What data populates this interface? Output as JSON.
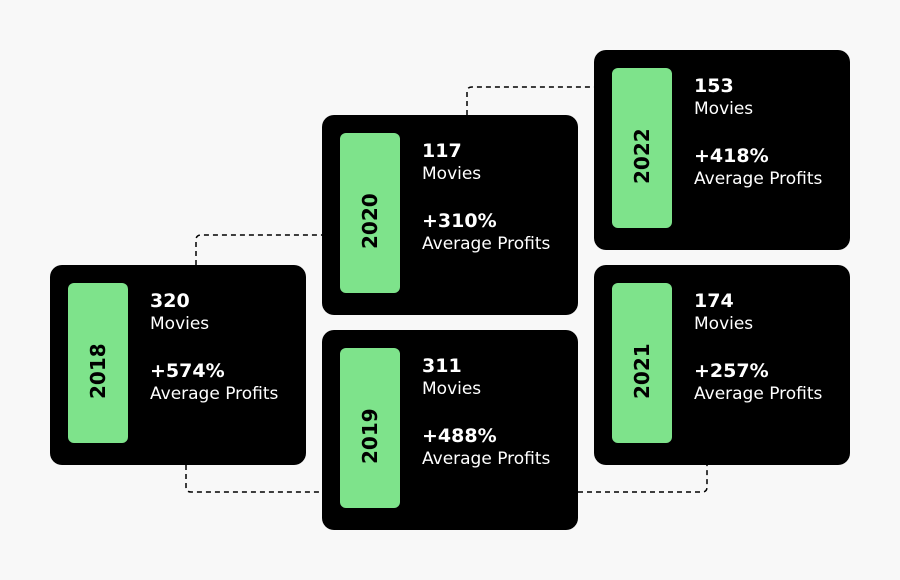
{
  "colors": {
    "background": "#f8f8f8",
    "card": "#000000",
    "accent": "#7ee38b",
    "text": "#ffffff",
    "connector": "#000000"
  },
  "cards": [
    {
      "year": "2018",
      "movies_value": "320",
      "movies_label": "Movies",
      "profit_value": "+574%",
      "profit_label": "Average Profits"
    },
    {
      "year": "2019",
      "movies_value": "311",
      "movies_label": "Movies",
      "profit_value": "+488%",
      "profit_label": "Average Profits"
    },
    {
      "year": "2020",
      "movies_value": "117",
      "movies_label": "Movies",
      "profit_value": "+310%",
      "profit_label": "Average Profits"
    },
    {
      "year": "2021",
      "movies_value": "174",
      "movies_label": "Movies",
      "profit_value": "+257%",
      "profit_label": "Average Profits"
    },
    {
      "year": "2022",
      "movies_value": "153",
      "movies_label": "Movies",
      "profit_value": "+418%",
      "profit_label": "Average Profits"
    }
  ]
}
